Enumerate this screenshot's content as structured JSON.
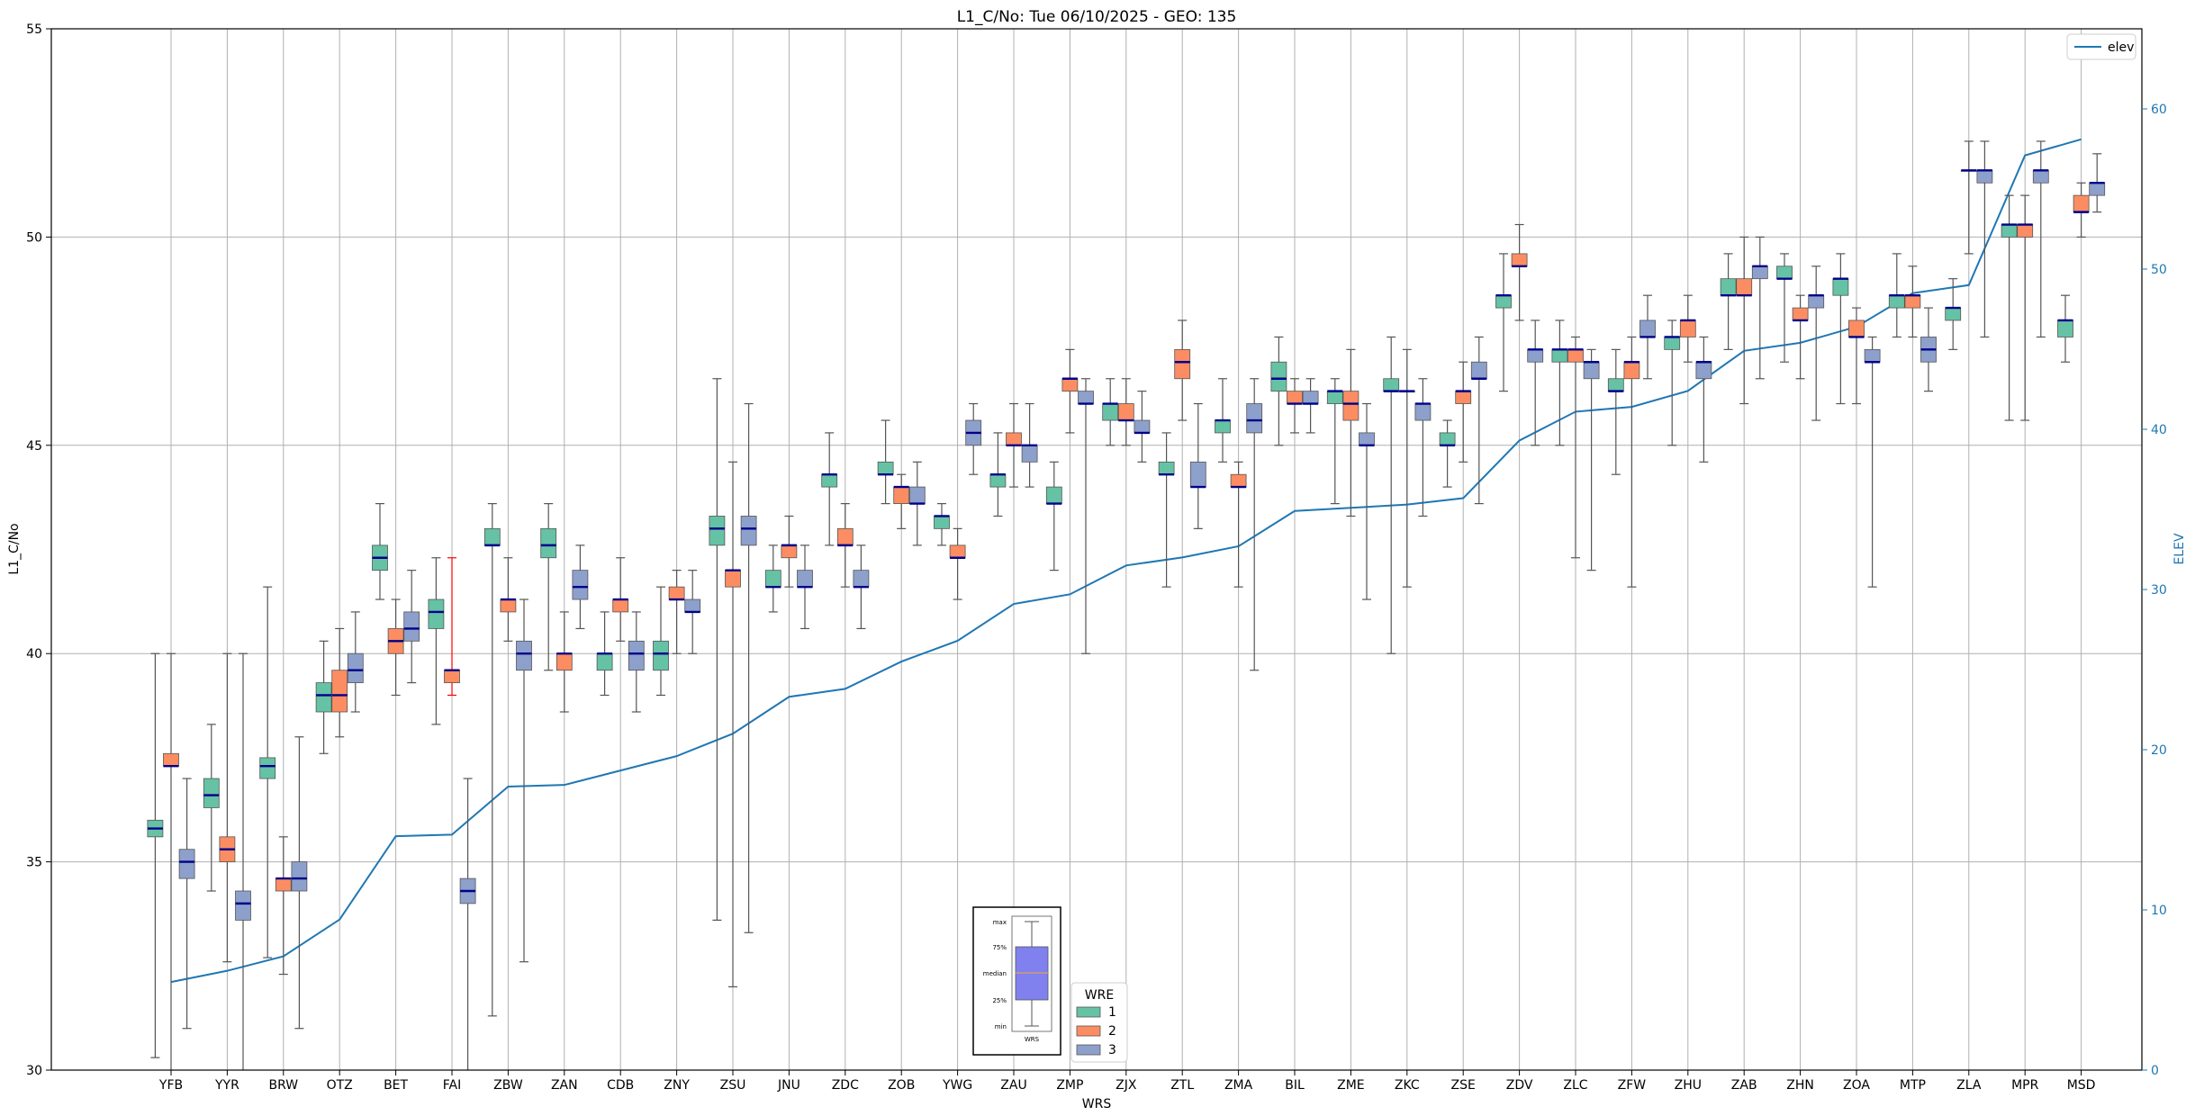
{
  "chart_data": {
    "type": "boxplot",
    "title": "L1_C/No: Tue 06/10/2025 - GEO: 135",
    "xlabel": "WRS",
    "ylabel": "L1_C/No",
    "ylabel_right": "ELEV",
    "ylim": [
      30,
      55
    ],
    "yticks": [
      30,
      35,
      40,
      45,
      50,
      55
    ],
    "ylim_right": [
      0,
      65
    ],
    "yticks_right": [
      0,
      10,
      20,
      30,
      40,
      50,
      60
    ],
    "grid": true,
    "colors": {
      "wre1": "#66c2a5",
      "wre2": "#fc8d62",
      "wre3": "#8da0cb",
      "median": "#00008b",
      "elev": "#1f77b4",
      "outlier_whisker": "#ff0000"
    },
    "categories": [
      "YFB",
      "YYR",
      "BRW",
      "OTZ",
      "BET",
      "FAI",
      "ZBW",
      "ZAN",
      "CDB",
      "ZNY",
      "ZSU",
      "JNU",
      "ZDC",
      "ZOB",
      "YWG",
      "ZAU",
      "ZMP",
      "ZJX",
      "ZTL",
      "ZMA",
      "BIL",
      "ZME",
      "ZKC",
      "ZSE",
      "ZDV",
      "ZLC",
      "ZFW",
      "ZHU",
      "ZAB",
      "ZHN",
      "ZOA",
      "MTP",
      "ZLA",
      "MPR",
      "MSD"
    ],
    "elev": [
      5.5,
      6.2,
      7.1,
      9.4,
      14.6,
      14.7,
      17.7,
      17.8,
      18.7,
      19.6,
      21.0,
      23.3,
      23.8,
      25.5,
      26.8,
      29.1,
      29.7,
      31.5,
      32.0,
      32.7,
      34.9,
      35.1,
      35.3,
      35.7,
      39.3,
      41.1,
      41.4,
      42.4,
      44.9,
      45.4,
      46.4,
      48.5,
      49.0,
      57.1,
      58.1
    ],
    "series": [
      {
        "name": "1",
        "boxes": [
          [
            30.3,
            35.6,
            35.8,
            36.0,
            40.0
          ],
          [
            34.3,
            36.3,
            36.6,
            37.0,
            38.3
          ],
          [
            32.7,
            37.0,
            37.3,
            37.5,
            41.6
          ],
          [
            37.6,
            38.6,
            39.0,
            39.3,
            40.3
          ],
          [
            41.3,
            42.0,
            42.3,
            42.6,
            43.6
          ],
          [
            38.3,
            40.6,
            41.0,
            41.3,
            42.3
          ],
          [
            31.3,
            42.6,
            42.6,
            43.0,
            43.6
          ],
          [
            39.6,
            42.3,
            42.6,
            43.0,
            43.6
          ],
          [
            39.0,
            39.6,
            40.0,
            40.0,
            41.0
          ],
          [
            39.0,
            39.6,
            40.0,
            40.3,
            41.6
          ],
          [
            33.6,
            42.6,
            43.0,
            43.3,
            46.6
          ],
          [
            41.0,
            41.6,
            41.6,
            42.0,
            42.6
          ],
          [
            42.6,
            44.0,
            44.3,
            44.3,
            45.3
          ],
          [
            43.6,
            44.3,
            44.3,
            44.6,
            45.6
          ],
          [
            42.6,
            43.0,
            43.3,
            43.3,
            43.6
          ],
          [
            43.3,
            44.0,
            44.3,
            44.3,
            45.3
          ],
          [
            42.0,
            43.6,
            43.6,
            44.0,
            44.6
          ],
          [
            45.0,
            45.6,
            46.0,
            46.0,
            46.6
          ],
          [
            41.6,
            44.3,
            44.3,
            44.6,
            45.3
          ],
          [
            44.6,
            45.3,
            45.6,
            45.6,
            46.6
          ],
          [
            45.0,
            46.3,
            46.6,
            47.0,
            47.6
          ],
          [
            43.6,
            46.0,
            46.3,
            46.3,
            46.6
          ],
          [
            40.0,
            46.3,
            46.3,
            46.6,
            47.6
          ],
          [
            44.0,
            45.0,
            45.0,
            45.3,
            45.6
          ],
          [
            46.3,
            48.3,
            48.6,
            48.6,
            49.6
          ],
          [
            45.0,
            47.0,
            47.3,
            47.3,
            48.0
          ],
          [
            44.3,
            46.3,
            46.3,
            46.6,
            47.3
          ],
          [
            45.0,
            47.3,
            47.6,
            47.6,
            48.0
          ],
          [
            47.3,
            48.6,
            48.6,
            49.0,
            49.6
          ],
          [
            47.0,
            49.0,
            49.0,
            49.3,
            49.6
          ],
          [
            46.0,
            48.6,
            49.0,
            49.0,
            49.6
          ],
          [
            47.6,
            48.3,
            48.6,
            48.6,
            49.6
          ],
          [
            47.3,
            48.0,
            48.3,
            48.3,
            49.0
          ],
          [
            45.6,
            50.0,
            50.3,
            50.3,
            51.0
          ],
          [
            47.0,
            47.6,
            48.0,
            48.0,
            48.6
          ]
        ]
      },
      {
        "name": "2",
        "boxes": [
          [
            30.0,
            37.3,
            37.3,
            37.6,
            40.0
          ],
          [
            32.6,
            35.0,
            35.3,
            35.6,
            40.0
          ],
          [
            32.3,
            34.3,
            34.6,
            34.6,
            35.6
          ],
          [
            38.0,
            38.6,
            39.0,
            39.6,
            40.6
          ],
          [
            39.0,
            40.0,
            40.3,
            40.6,
            41.3
          ],
          [
            39.0,
            39.3,
            39.6,
            39.6,
            42.3
          ],
          [
            40.3,
            41.0,
            41.3,
            41.3,
            42.3
          ],
          [
            38.6,
            39.6,
            40.0,
            40.0,
            41.0
          ],
          [
            40.3,
            41.0,
            41.3,
            41.3,
            42.3
          ],
          [
            40.0,
            41.3,
            41.3,
            41.6,
            42.0
          ],
          [
            32.0,
            41.6,
            42.0,
            42.0,
            44.6
          ],
          [
            41.6,
            42.3,
            42.6,
            42.6,
            43.3
          ],
          [
            41.6,
            42.6,
            42.6,
            43.0,
            43.6
          ],
          [
            43.0,
            43.6,
            44.0,
            44.0,
            44.3
          ],
          [
            41.3,
            42.3,
            42.3,
            42.6,
            43.0
          ],
          [
            44.0,
            45.0,
            45.0,
            45.3,
            46.0
          ],
          [
            45.3,
            46.3,
            46.6,
            46.6,
            47.3
          ],
          [
            45.0,
            45.6,
            45.6,
            46.0,
            46.6
          ],
          [
            45.6,
            46.6,
            47.0,
            47.3,
            48.0
          ],
          [
            41.6,
            44.0,
            44.0,
            44.3,
            44.6
          ],
          [
            45.3,
            46.0,
            46.0,
            46.3,
            46.6
          ],
          [
            43.3,
            45.6,
            46.0,
            46.3,
            47.3
          ],
          [
            41.6,
            46.3,
            46.3,
            46.3,
            47.3
          ],
          [
            44.6,
            46.0,
            46.3,
            46.3,
            47.0
          ],
          [
            48.0,
            49.3,
            49.3,
            49.6,
            50.3
          ],
          [
            42.3,
            47.0,
            47.3,
            47.3,
            47.6
          ],
          [
            41.6,
            46.6,
            47.0,
            47.0,
            47.6
          ],
          [
            47.0,
            47.6,
            48.0,
            48.0,
            48.6
          ],
          [
            46.0,
            48.6,
            48.6,
            49.0,
            50.0
          ],
          [
            46.6,
            48.0,
            48.0,
            48.3,
            48.6
          ],
          [
            46.0,
            47.6,
            47.6,
            48.0,
            48.3
          ],
          [
            47.6,
            48.3,
            48.6,
            48.6,
            49.3
          ],
          [
            49.6,
            51.6,
            51.6,
            51.6,
            52.3
          ],
          [
            45.6,
            50.0,
            50.3,
            50.3,
            51.0
          ],
          [
            50.0,
            50.6,
            50.6,
            51.0,
            51.3
          ]
        ]
      },
      {
        "name": "3",
        "boxes": [
          [
            31.0,
            34.6,
            35.0,
            35.3,
            37.0
          ],
          [
            30.0,
            33.6,
            34.0,
            34.3,
            40.0
          ],
          [
            31.0,
            34.3,
            34.6,
            35.0,
            38.0
          ],
          [
            38.6,
            39.3,
            39.6,
            40.0,
            41.0
          ],
          [
            39.3,
            40.3,
            40.6,
            41.0,
            42.0
          ],
          [
            30.0,
            34.0,
            34.3,
            34.6,
            37.0
          ],
          [
            32.6,
            39.6,
            40.0,
            40.3,
            41.3
          ],
          [
            40.6,
            41.3,
            41.6,
            42.0,
            42.6
          ],
          [
            38.6,
            39.6,
            40.0,
            40.3,
            41.0
          ],
          [
            40.0,
            41.0,
            41.0,
            41.3,
            42.0
          ],
          [
            33.3,
            42.6,
            43.0,
            43.3,
            46.0
          ],
          [
            40.6,
            41.6,
            41.6,
            42.0,
            42.6
          ],
          [
            40.6,
            41.6,
            41.6,
            42.0,
            42.6
          ],
          [
            42.6,
            43.6,
            43.6,
            44.0,
            44.6
          ],
          [
            44.3,
            45.0,
            45.3,
            45.6,
            46.0
          ],
          [
            44.0,
            44.6,
            45.0,
            45.0,
            46.0
          ],
          [
            40.0,
            46.0,
            46.0,
            46.3,
            46.6
          ],
          [
            44.6,
            45.3,
            45.3,
            45.6,
            46.3
          ],
          [
            43.0,
            44.0,
            44.0,
            44.6,
            46.0
          ],
          [
            39.6,
            45.3,
            45.6,
            46.0,
            46.6
          ],
          [
            45.3,
            46.0,
            46.0,
            46.3,
            46.6
          ],
          [
            41.3,
            45.0,
            45.0,
            45.3,
            46.0
          ],
          [
            43.3,
            45.6,
            46.0,
            46.0,
            46.6
          ],
          [
            43.6,
            46.6,
            46.6,
            47.0,
            47.6
          ],
          [
            45.0,
            47.0,
            47.3,
            47.3,
            48.0
          ],
          [
            42.0,
            46.6,
            47.0,
            47.0,
            47.3
          ],
          [
            46.6,
            47.6,
            47.6,
            48.0,
            48.6
          ],
          [
            44.6,
            46.6,
            47.0,
            47.0,
            47.6
          ],
          [
            46.6,
            49.0,
            49.3,
            49.3,
            50.0
          ],
          [
            45.6,
            48.3,
            48.6,
            48.6,
            49.3
          ],
          [
            41.6,
            47.0,
            47.0,
            47.3,
            47.6
          ],
          [
            46.3,
            47.0,
            47.3,
            47.6,
            48.3
          ],
          [
            47.6,
            51.3,
            51.6,
            51.6,
            52.3
          ],
          [
            47.6,
            51.3,
            51.6,
            51.6,
            52.3
          ],
          [
            50.6,
            51.0,
            51.3,
            51.3,
            52.0
          ]
        ]
      }
    ],
    "box_order": "whisker_low, q1, median, q3, whisker_high",
    "legend": {
      "title": "WRE",
      "entries": [
        "1",
        "2",
        "3"
      ],
      "position": "lower-center"
    },
    "elev_legend": {
      "entries": [
        "elev"
      ],
      "position": "top-right"
    },
    "key_inset": {
      "labels": [
        "max",
        "75%",
        "median",
        "25%",
        "min"
      ],
      "xlabel": "WRS",
      "position": "lower-center"
    }
  }
}
